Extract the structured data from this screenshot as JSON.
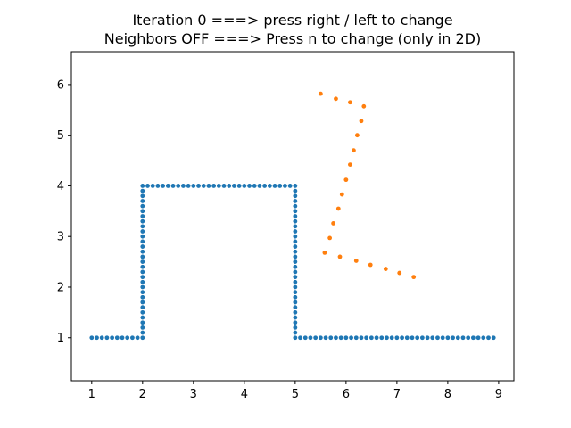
{
  "chart_data": {
    "type": "scatter",
    "title": "Iteration 0 ===> press right / left to change",
    "subtitle": "Neighbors OFF ===> Press n to change (only in 2D)",
    "xlabel": "",
    "ylabel": "",
    "xlim": [
      0.6,
      9.3
    ],
    "ylim": [
      0.15,
      6.65
    ],
    "xticks": [
      1,
      2,
      3,
      4,
      5,
      6,
      7,
      8,
      9
    ],
    "yticks": [
      1,
      2,
      3,
      4,
      5,
      6
    ],
    "grid": false,
    "series": [
      {
        "color": "#1f77b4",
        "points": [
          [
            1.0,
            1.0
          ],
          [
            1.1,
            1.0
          ],
          [
            1.2,
            1.0
          ],
          [
            1.3,
            1.0
          ],
          [
            1.4,
            1.0
          ],
          [
            1.5,
            1.0
          ],
          [
            1.6,
            1.0
          ],
          [
            1.7,
            1.0
          ],
          [
            1.8,
            1.0
          ],
          [
            1.9,
            1.0
          ],
          [
            2.0,
            1.0
          ],
          [
            2.0,
            1.1
          ],
          [
            2.0,
            1.2
          ],
          [
            2.0,
            1.3
          ],
          [
            2.0,
            1.4
          ],
          [
            2.0,
            1.5
          ],
          [
            2.0,
            1.6
          ],
          [
            2.0,
            1.7
          ],
          [
            2.0,
            1.8
          ],
          [
            2.0,
            1.9
          ],
          [
            2.0,
            2.0
          ],
          [
            2.0,
            2.1
          ],
          [
            2.0,
            2.2
          ],
          [
            2.0,
            2.3
          ],
          [
            2.0,
            2.4
          ],
          [
            2.0,
            2.5
          ],
          [
            2.0,
            2.6
          ],
          [
            2.0,
            2.7
          ],
          [
            2.0,
            2.8
          ],
          [
            2.0,
            2.9
          ],
          [
            2.0,
            3.0
          ],
          [
            2.0,
            3.1
          ],
          [
            2.0,
            3.2
          ],
          [
            2.0,
            3.3
          ],
          [
            2.0,
            3.4
          ],
          [
            2.0,
            3.5
          ],
          [
            2.0,
            3.6
          ],
          [
            2.0,
            3.7
          ],
          [
            2.0,
            3.8
          ],
          [
            2.0,
            3.9
          ],
          [
            2.0,
            4.0
          ],
          [
            2.1,
            4.0
          ],
          [
            2.2,
            4.0
          ],
          [
            2.3,
            4.0
          ],
          [
            2.4,
            4.0
          ],
          [
            2.5,
            4.0
          ],
          [
            2.6,
            4.0
          ],
          [
            2.7,
            4.0
          ],
          [
            2.8,
            4.0
          ],
          [
            2.9,
            4.0
          ],
          [
            3.0,
            4.0
          ],
          [
            3.1,
            4.0
          ],
          [
            3.2,
            4.0
          ],
          [
            3.3,
            4.0
          ],
          [
            3.4,
            4.0
          ],
          [
            3.5,
            4.0
          ],
          [
            3.6,
            4.0
          ],
          [
            3.7,
            4.0
          ],
          [
            3.8,
            4.0
          ],
          [
            3.9,
            4.0
          ],
          [
            4.0,
            4.0
          ],
          [
            4.1,
            4.0
          ],
          [
            4.2,
            4.0
          ],
          [
            4.3,
            4.0
          ],
          [
            4.4,
            4.0
          ],
          [
            4.5,
            4.0
          ],
          [
            4.6,
            4.0
          ],
          [
            4.7,
            4.0
          ],
          [
            4.8,
            4.0
          ],
          [
            4.9,
            4.0
          ],
          [
            5.0,
            4.0
          ],
          [
            5.0,
            3.9
          ],
          [
            5.0,
            3.8
          ],
          [
            5.0,
            3.7
          ],
          [
            5.0,
            3.6
          ],
          [
            5.0,
            3.5
          ],
          [
            5.0,
            3.4
          ],
          [
            5.0,
            3.3
          ],
          [
            5.0,
            3.2
          ],
          [
            5.0,
            3.1
          ],
          [
            5.0,
            3.0
          ],
          [
            5.0,
            2.9
          ],
          [
            5.0,
            2.8
          ],
          [
            5.0,
            2.7
          ],
          [
            5.0,
            2.6
          ],
          [
            5.0,
            2.5
          ],
          [
            5.0,
            2.4
          ],
          [
            5.0,
            2.3
          ],
          [
            5.0,
            2.2
          ],
          [
            5.0,
            2.1
          ],
          [
            5.0,
            2.0
          ],
          [
            5.0,
            1.9
          ],
          [
            5.0,
            1.8
          ],
          [
            5.0,
            1.7
          ],
          [
            5.0,
            1.6
          ],
          [
            5.0,
            1.5
          ],
          [
            5.0,
            1.4
          ],
          [
            5.0,
            1.3
          ],
          [
            5.0,
            1.2
          ],
          [
            5.0,
            1.1
          ],
          [
            5.0,
            1.0
          ],
          [
            5.1,
            1.0
          ],
          [
            5.2,
            1.0
          ],
          [
            5.3,
            1.0
          ],
          [
            5.4,
            1.0
          ],
          [
            5.5,
            1.0
          ],
          [
            5.6,
            1.0
          ],
          [
            5.7,
            1.0
          ],
          [
            5.8,
            1.0
          ],
          [
            5.9,
            1.0
          ],
          [
            6.0,
            1.0
          ],
          [
            6.1,
            1.0
          ],
          [
            6.2,
            1.0
          ],
          [
            6.3,
            1.0
          ],
          [
            6.4,
            1.0
          ],
          [
            6.5,
            1.0
          ],
          [
            6.6,
            1.0
          ],
          [
            6.7,
            1.0
          ],
          [
            6.8,
            1.0
          ],
          [
            6.9,
            1.0
          ],
          [
            7.0,
            1.0
          ],
          [
            7.1,
            1.0
          ],
          [
            7.2,
            1.0
          ],
          [
            7.3,
            1.0
          ],
          [
            7.4,
            1.0
          ],
          [
            7.5,
            1.0
          ],
          [
            7.6,
            1.0
          ],
          [
            7.7,
            1.0
          ],
          [
            7.8,
            1.0
          ],
          [
            7.9,
            1.0
          ],
          [
            8.0,
            1.0
          ],
          [
            8.1,
            1.0
          ],
          [
            8.2,
            1.0
          ],
          [
            8.3,
            1.0
          ],
          [
            8.4,
            1.0
          ],
          [
            8.5,
            1.0
          ],
          [
            8.6,
            1.0
          ],
          [
            8.7,
            1.0
          ],
          [
            8.8,
            1.0
          ],
          [
            8.9,
            1.0
          ]
        ]
      },
      {
        "color": "#ff7f0e",
        "points": [
          [
            5.5,
            5.82
          ],
          [
            5.8,
            5.72
          ],
          [
            6.08,
            5.65
          ],
          [
            6.35,
            5.57
          ],
          [
            6.3,
            5.28
          ],
          [
            6.22,
            5.0
          ],
          [
            6.15,
            4.7
          ],
          [
            6.08,
            4.42
          ],
          [
            6.0,
            4.12
          ],
          [
            5.92,
            3.83
          ],
          [
            5.85,
            3.55
          ],
          [
            5.75,
            3.26
          ],
          [
            5.68,
            2.97
          ],
          [
            5.58,
            2.68
          ],
          [
            5.88,
            2.6
          ],
          [
            6.2,
            2.52
          ],
          [
            6.48,
            2.44
          ],
          [
            6.78,
            2.36
          ],
          [
            7.05,
            2.28
          ],
          [
            7.33,
            2.2
          ]
        ]
      }
    ]
  }
}
